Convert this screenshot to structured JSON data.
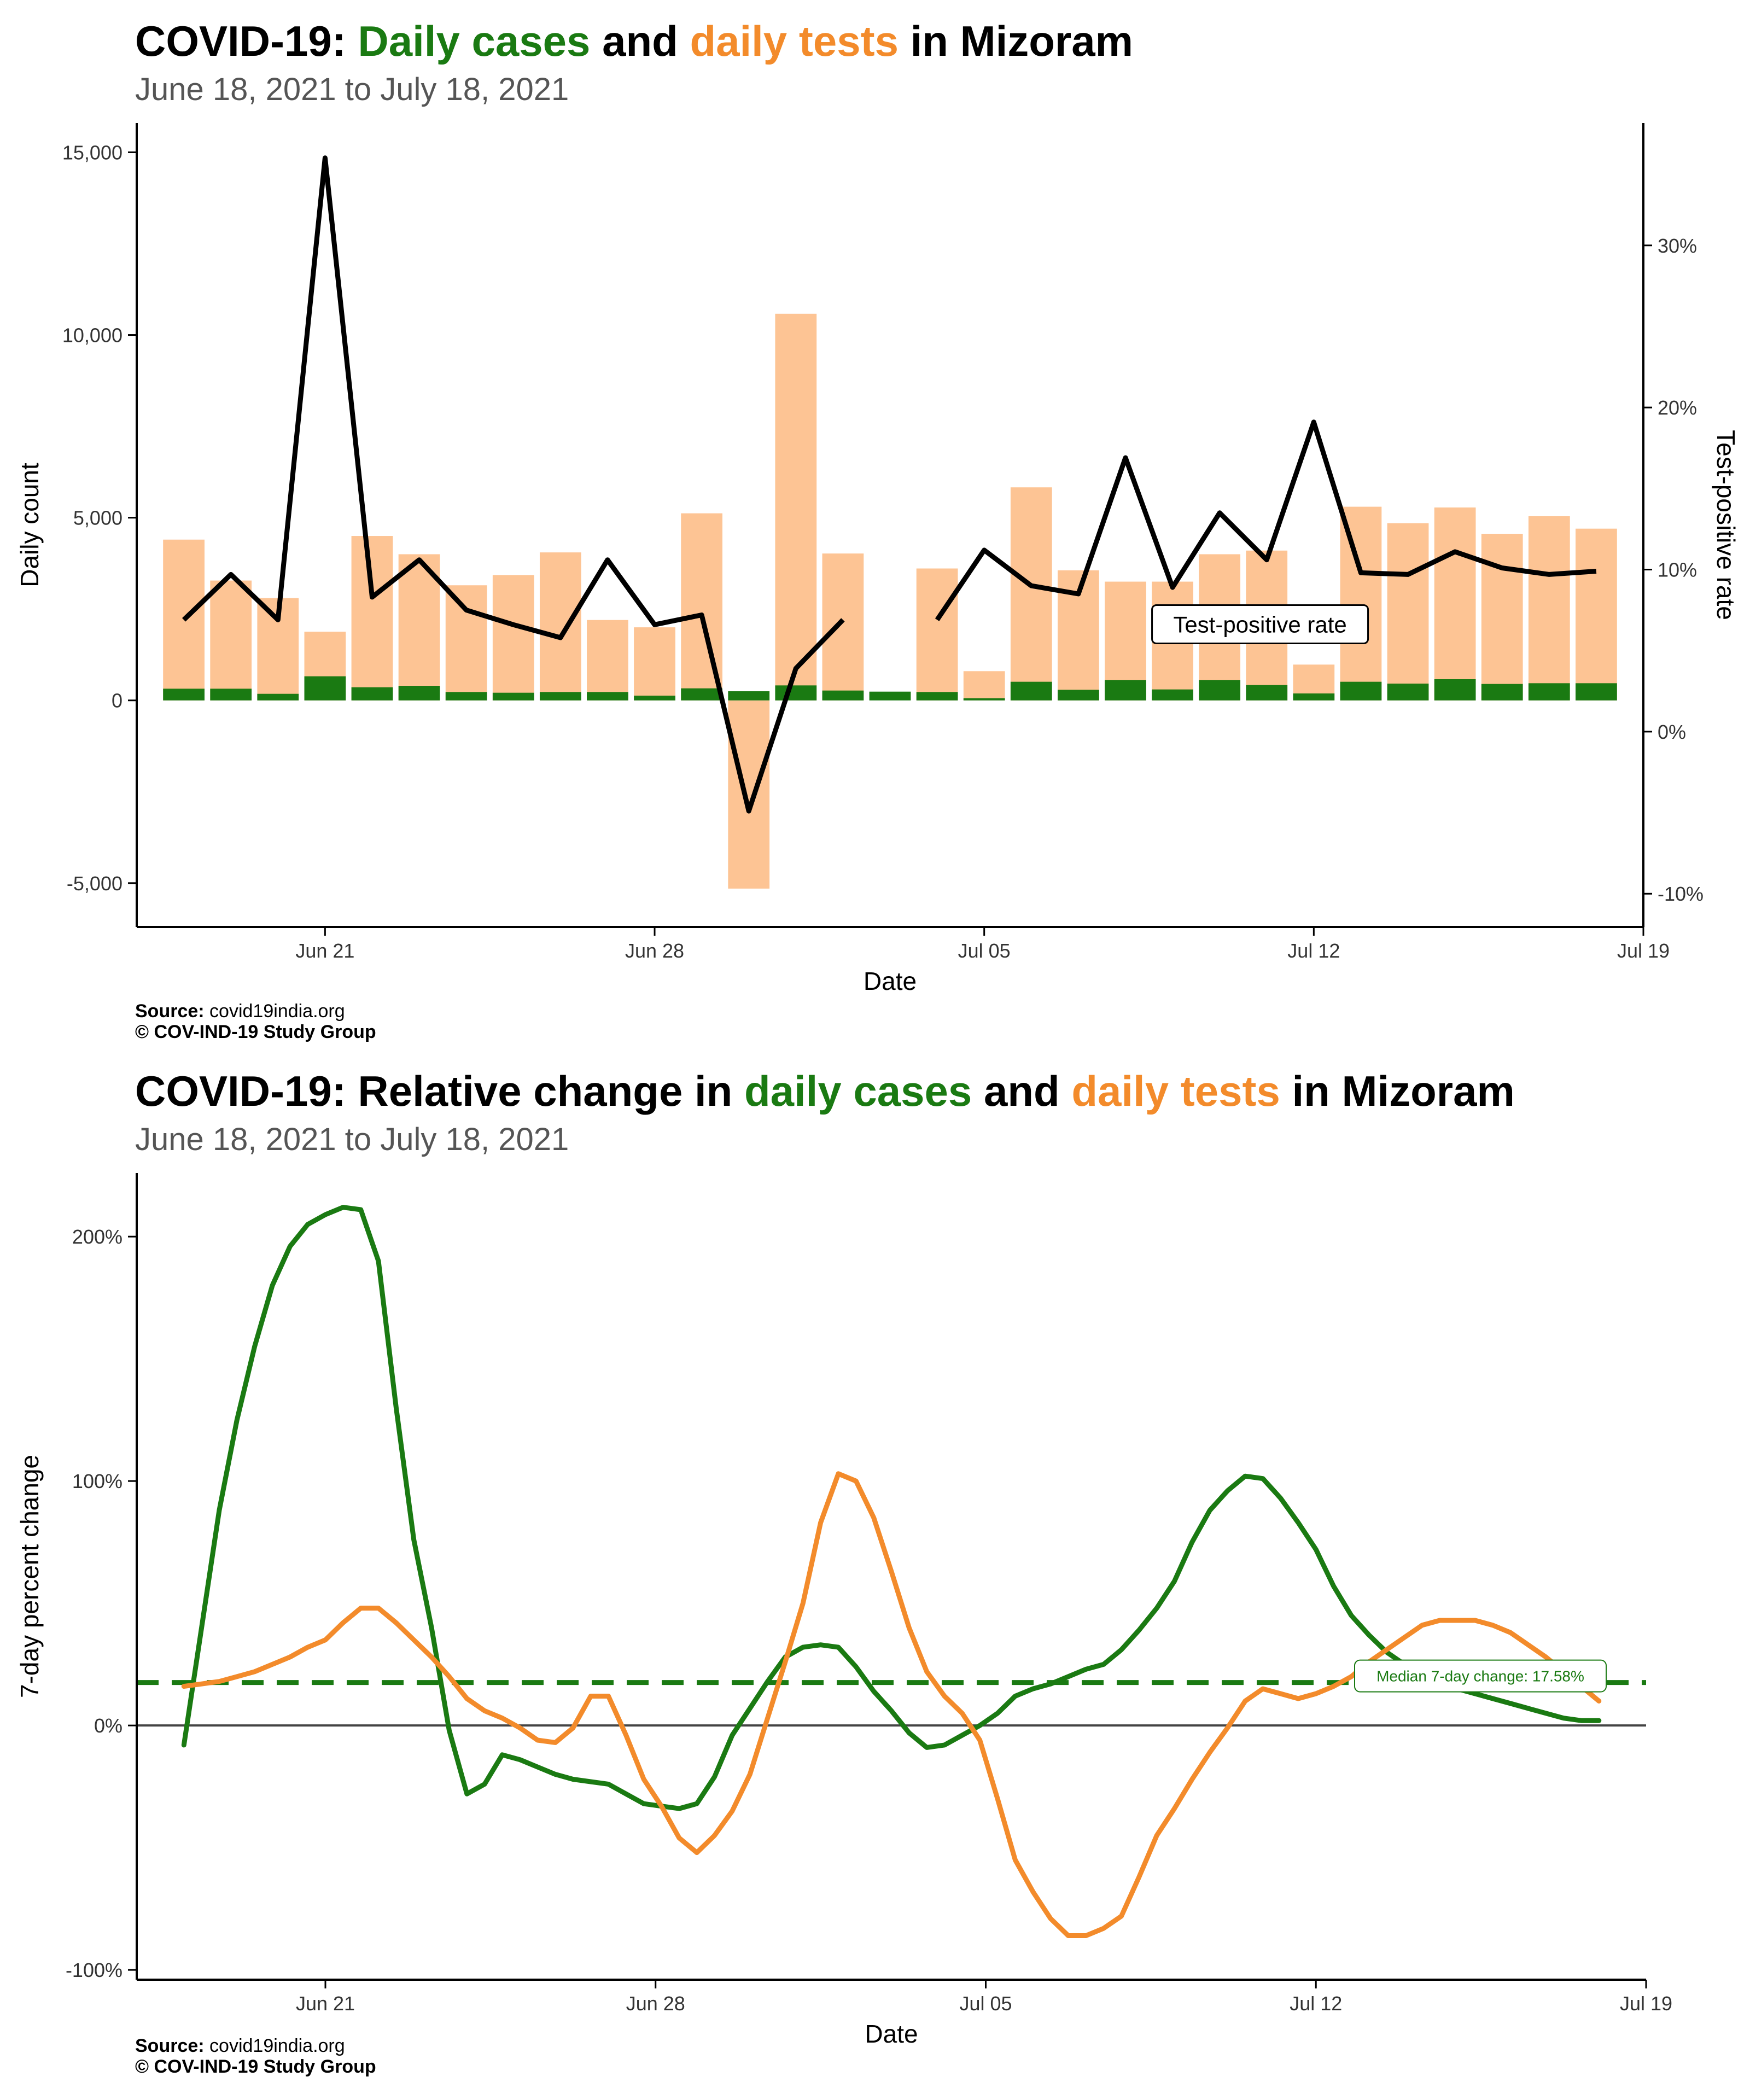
{
  "chart1": {
    "title": {
      "prefix": "COVID-19:",
      "part1": "Daily cases",
      "mid": "and",
      "part2": "daily tests",
      "suffix": "in Mizoram"
    },
    "subtitle": "June 18, 2021 to July 18, 2021",
    "source_label": "Source:",
    "source_value": "covid19india.org",
    "copyright": "© COV-IND-19 Study Group"
  },
  "chart2": {
    "title": {
      "prefix": "COVID-19: Relative change in",
      "part1": "daily cases",
      "mid": "and",
      "part2": "daily tests",
      "suffix": "in Mizoram"
    },
    "subtitle": "June 18, 2021 to July 18, 2021",
    "source_label": "Source:",
    "source_value": "covid19india.org",
    "copyright": "© COV-IND-19 Study Group"
  },
  "chart_data": [
    {
      "type": "bar",
      "title": "COVID-19: Daily cases and daily tests in Mizoram",
      "subtitle": "June 18, 2021 to July 18, 2021",
      "xlabel": "Date",
      "ylabel": "Daily count",
      "y2label": "Test-positive rate",
      "ylim": [
        -6200,
        15800
      ],
      "y2lim": [
        -0.1205,
        0.3755
      ],
      "yticks": [
        -5000,
        0,
        5000,
        10000,
        15000
      ],
      "ytick_labels": [
        "-5,000",
        "0",
        "5,000",
        "10,000",
        "15,000"
      ],
      "y2ticks": [
        -0.1,
        0,
        0.1,
        0.2,
        0.3
      ],
      "y2tick_labels": [
        "-10%",
        "0%",
        "10%",
        "20%",
        "30%"
      ],
      "xticks": [
        "2021-06-21",
        "2021-06-28",
        "2021-07-05",
        "2021-07-12",
        "2021-07-19"
      ],
      "xtick_labels": [
        "Jun 21",
        "Jun 28",
        "Jul 05",
        "Jul 12",
        "Jul 19"
      ],
      "xlim": [
        "2021-06-17",
        "2021-07-19"
      ],
      "dates": [
        "2021-06-18",
        "2021-06-19",
        "2021-06-20",
        "2021-06-21",
        "2021-06-22",
        "2021-06-23",
        "2021-06-24",
        "2021-06-25",
        "2021-06-26",
        "2021-06-27",
        "2021-06-28",
        "2021-06-29",
        "2021-06-30",
        "2021-07-01",
        "2021-07-02",
        "2021-07-03",
        "2021-07-04",
        "2021-07-05",
        "2021-07-06",
        "2021-07-07",
        "2021-07-08",
        "2021-07-09",
        "2021-07-10",
        "2021-07-11",
        "2021-07-12",
        "2021-07-13",
        "2021-07-14",
        "2021-07-15",
        "2021-07-16",
        "2021-07-17",
        "2021-07-18"
      ],
      "series": [
        {
          "name": "daily tests",
          "color": "#fdc494",
          "values": [
            4400,
            3280,
            2800,
            1880,
            4500,
            4000,
            3150,
            3430,
            4050,
            2200,
            2000,
            5120,
            -5150,
            10580,
            4020,
            0,
            3610,
            800,
            5830,
            3560,
            3250,
            3250,
            4000,
            4100,
            980,
            5300,
            4850,
            5280,
            4560,
            5040,
            4700
          ]
        },
        {
          "name": "daily cases",
          "color": "#1a7a12",
          "values": [
            320,
            320,
            180,
            660,
            360,
            400,
            230,
            210,
            230,
            230,
            130,
            330,
            250,
            410,
            270,
            240,
            230,
            60,
            510,
            290,
            560,
            300,
            560,
            420,
            190,
            510,
            460,
            580,
            450,
            470,
            470
          ]
        },
        {
          "name": "Test-positive rate",
          "color": "#000000",
          "values": [
            0.069,
            0.097,
            0.069,
            0.354,
            0.083,
            0.106,
            0.075,
            0.066,
            0.058,
            0.106,
            0.066,
            0.072,
            -0.049,
            0.039,
            0.069,
            null,
            0.069,
            0.112,
            0.09,
            0.085,
            0.169,
            0.089,
            0.135,
            0.106,
            0.191,
            0.098,
            0.097,
            0.111,
            0.101,
            0.097,
            0.099
          ]
        }
      ],
      "annotation": "Test-positive rate",
      "annotation_anchor": {
        "x": "2021-07-09",
        "y": 0.073
      }
    },
    {
      "type": "line",
      "title": "COVID-19: Relative change in daily cases and daily tests in Mizoram",
      "subtitle": "June 18, 2021 to July 18, 2021",
      "xlabel": "Date",
      "ylabel": "7-day percent change",
      "ylim": [
        -104,
        226
      ],
      "yticks": [
        -100,
        0,
        100,
        200
      ],
      "ytick_labels": [
        "-100%",
        "0%",
        "100%",
        "200%"
      ],
      "xticks": [
        "2021-06-21",
        "2021-06-28",
        "2021-07-05",
        "2021-07-12",
        "2021-07-19"
      ],
      "xtick_labels": [
        "Jun 21",
        "Jun 28",
        "Jul 05",
        "Jul 12",
        "Jul 19"
      ],
      "xlim": [
        "2021-06-17",
        "2021-07-19"
      ],
      "x_days": [
        0,
        0.375,
        0.75,
        1.125,
        1.5,
        1.875,
        2.25,
        2.625,
        3,
        3.375,
        3.75,
        4.125,
        4.5,
        4.875,
        5.25,
        5.625,
        6,
        6.375,
        6.75,
        7.125,
        7.5,
        7.875,
        8.25,
        8.625,
        9,
        9.375,
        9.75,
        10.125,
        10.5,
        10.875,
        11.25,
        11.625,
        12,
        12.375,
        12.75,
        13.125,
        13.5,
        13.875,
        14.25,
        14.625,
        15,
        15.375,
        15.75,
        16.125,
        16.5,
        16.875,
        17.25,
        17.625,
        18,
        18.375,
        18.75,
        19.125,
        19.5,
        19.875,
        20.25,
        20.625,
        21,
        21.375,
        21.75,
        22.125,
        22.5,
        22.875,
        23.25,
        23.625,
        24,
        24.375,
        24.75,
        25.125,
        25.5,
        25.875,
        26.25,
        26.625,
        27,
        27.375,
        27.75,
        28.125,
        28.5,
        28.875,
        29.25,
        29.625,
        30
      ],
      "series": [
        {
          "name": "daily cases",
          "color": "#1a7a12",
          "values": [
            -8,
            40,
            88,
            125,
            155,
            180,
            196,
            205,
            209,
            212,
            211,
            190,
            130,
            76,
            40,
            -2,
            -28,
            -24,
            -12,
            -14,
            -17,
            -20,
            -22,
            -23,
            -24,
            -28,
            -32,
            -33,
            -34,
            -32,
            -21,
            -4,
            7,
            18,
            28,
            32,
            33,
            32,
            24,
            14,
            6,
            -3,
            -9,
            -8,
            -4,
            0,
            5,
            12,
            15,
            17,
            20,
            23,
            25,
            31,
            39,
            48,
            59,
            75,
            88,
            96,
            102,
            101,
            93,
            83,
            72,
            57,
            45,
            37,
            30,
            25,
            21,
            18,
            15,
            13,
            11,
            9,
            7,
            5,
            3,
            2,
            2
          ]
        },
        {
          "name": "daily tests",
          "color": "#f38b2b",
          "values": [
            16,
            17,
            18,
            20,
            22,
            25,
            28,
            32,
            35,
            42,
            48,
            48,
            42,
            35,
            28,
            20,
            11,
            6,
            3,
            -1,
            -6,
            -7,
            -1,
            12,
            12,
            -4,
            -22,
            -33,
            -46,
            -52,
            -45,
            -35,
            -20,
            3,
            26,
            50,
            83,
            103,
            100,
            85,
            63,
            40,
            22,
            12,
            5,
            -6,
            -30,
            -55,
            -68,
            -79,
            -86,
            -86,
            -83,
            -78,
            -62,
            -45,
            -34,
            -22,
            -11,
            -1,
            10,
            15,
            13,
            11,
            13,
            16,
            20,
            26,
            31,
            36,
            41,
            43,
            43,
            43,
            41,
            38,
            33,
            28,
            22,
            16,
            10
          ]
        }
      ],
      "median_change": 17.58,
      "median_label": "Median 7-day change: 17.58%"
    }
  ]
}
